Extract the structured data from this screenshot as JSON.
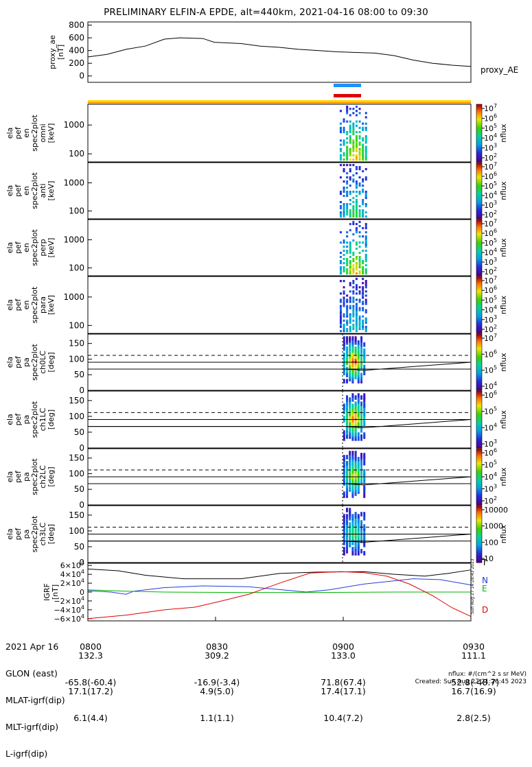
{
  "title": "PRELIMINARY ELFIN-A EPDE, alt=440km, 2021-04-16 08:00 to 09:30",
  "panels": [
    {
      "id": "proxy_ae",
      "ylabel_lines": [
        "proxy_ae",
        "[nT]"
      ],
      "right_label": "proxy_AE",
      "yticks": [
        "800",
        "600",
        "400",
        "200",
        "0"
      ]
    },
    {
      "id": "omni",
      "ylabel_lines": [
        "ela",
        "pef",
        "en",
        "spec2plot",
        "omni",
        "[keV]"
      ],
      "yticks": [
        "1000",
        "100"
      ],
      "cbar_ticks": [
        "10^7",
        "10^6",
        "10^5",
        "10^4",
        "10^3",
        "10^2"
      ],
      "cbar_label": "nflux"
    },
    {
      "id": "anti",
      "ylabel_lines": [
        "ela",
        "pef",
        "en",
        "spec2plot",
        "anti",
        "[keV]"
      ],
      "yticks": [
        "1000",
        "100"
      ],
      "cbar_ticks": [
        "10^7",
        "10^6",
        "10^5",
        "10^4",
        "10^3",
        "10^2"
      ],
      "cbar_label": "nflux"
    },
    {
      "id": "perp",
      "ylabel_lines": [
        "ela",
        "pef",
        "en",
        "spec2plot",
        "perp",
        "[keV]"
      ],
      "yticks": [
        "1000",
        "100"
      ],
      "cbar_ticks": [
        "10^7",
        "10^6",
        "10^5",
        "10^4",
        "10^3",
        "10^2"
      ],
      "cbar_label": "nflux"
    },
    {
      "id": "para",
      "ylabel_lines": [
        "ela",
        "pef",
        "en",
        "spec2plot",
        "para",
        "[keV]"
      ],
      "yticks": [
        "1000",
        "100"
      ],
      "cbar_ticks": [
        "10^7",
        "10^6",
        "10^5",
        "10^4",
        "10^3",
        "10^2"
      ],
      "cbar_label": "nflux"
    },
    {
      "id": "ch0LC",
      "ylabel_lines": [
        "ela",
        "pef",
        "pa",
        "spec2plot",
        "ch0LC",
        "[deg]"
      ],
      "yticks": [
        "150",
        "100",
        "50",
        "0"
      ],
      "cbar_ticks": [
        "10^7",
        "10^6",
        "10^5",
        "10^4"
      ],
      "cbar_label": "nflux"
    },
    {
      "id": "ch1LC",
      "ylabel_lines": [
        "ela",
        "pef",
        "pa",
        "spec2plot",
        "ch1LC",
        "[deg]"
      ],
      "yticks": [
        "150",
        "100",
        "50",
        "0"
      ],
      "cbar_ticks": [
        "10^6",
        "10^5",
        "10^4",
        "10^3"
      ],
      "cbar_label": "nflux"
    },
    {
      "id": "ch2LC",
      "ylabel_lines": [
        "ela",
        "pef",
        "pa",
        "spec2plot",
        "ch2LC",
        "[deg]"
      ],
      "yticks": [
        "150",
        "100",
        "50",
        "0"
      ],
      "cbar_ticks": [
        "10^6",
        "10^5",
        "10^4",
        "10^3",
        "10^2"
      ],
      "cbar_label": "nflux"
    },
    {
      "id": "ch3LC",
      "ylabel_lines": [
        "ela",
        "pef",
        "pa",
        "spec2plot",
        "ch3LC",
        "[deg]"
      ],
      "yticks": [
        "150",
        "100",
        "50",
        "0"
      ],
      "cbar_ticks": [
        "10000",
        "1000",
        "100",
        "10"
      ],
      "cbar_label": "nflux"
    },
    {
      "id": "igrf",
      "ylabel_lines": [
        "IGRF",
        "[nT]"
      ],
      "yticks": [
        "6×10^4",
        "4×10^4",
        "2×10^4",
        "0",
        "−2×10^4",
        "−4×10^4",
        "−6×10^4"
      ],
      "right_labels": [
        "T",
        "N",
        "E",
        "D"
      ]
    }
  ],
  "colors": {
    "T": "#000000",
    "N": "#1f3fd6",
    "E": "#00b000",
    "D": "#e00000",
    "sci_bar": "#ffd400",
    "sci_bar_edge": "#ff7f00",
    "marker_blue": "#1e90ff",
    "marker_red": "#e00000"
  },
  "chart_data": {
    "type": "line",
    "x": [
      "0800",
      "0830",
      "0900",
      "0930"
    ],
    "series": [
      {
        "name": "proxy_AE",
        "points": [
          [
            0,
            300
          ],
          [
            5,
            340
          ],
          [
            10,
            420
          ],
          [
            15,
            470
          ],
          [
            20,
            580
          ],
          [
            24,
            600
          ],
          [
            30,
            590
          ],
          [
            33,
            530
          ],
          [
            40,
            510
          ],
          [
            45,
            470
          ],
          [
            50,
            450
          ],
          [
            55,
            420
          ],
          [
            60,
            400
          ],
          [
            65,
            380
          ],
          [
            70,
            370
          ],
          [
            75,
            360
          ],
          [
            80,
            320
          ],
          [
            85,
            250
          ],
          [
            90,
            200
          ],
          [
            95,
            170
          ],
          [
            100,
            150
          ]
        ]
      },
      {
        "name": "T",
        "points": [
          [
            0,
            52000
          ],
          [
            8,
            48000
          ],
          [
            15,
            38000
          ],
          [
            25,
            30000
          ],
          [
            40,
            30000
          ],
          [
            50,
            42000
          ],
          [
            60,
            45000
          ],
          [
            72,
            46000
          ],
          [
            80,
            40000
          ],
          [
            88,
            36000
          ],
          [
            94,
            42000
          ],
          [
            100,
            50000
          ]
        ]
      },
      {
        "name": "N",
        "points": [
          [
            0,
            3000
          ],
          [
            6,
            0
          ],
          [
            10,
            -5000
          ],
          [
            12,
            2000
          ],
          [
            20,
            10000
          ],
          [
            30,
            14000
          ],
          [
            42,
            12000
          ],
          [
            52,
            4000
          ],
          [
            57,
            0
          ],
          [
            63,
            5000
          ],
          [
            72,
            18000
          ],
          [
            85,
            30000
          ],
          [
            92,
            28000
          ],
          [
            100,
            16000
          ]
        ]
      },
      {
        "name": "E",
        "points": [
          [
            0,
            5000
          ],
          [
            10,
            2000
          ],
          [
            20,
            0
          ],
          [
            40,
            -1000
          ],
          [
            60,
            -1000
          ],
          [
            80,
            0
          ],
          [
            100,
            0
          ]
        ]
      },
      {
        "name": "D",
        "points": [
          [
            0,
            -60000
          ],
          [
            10,
            -52000
          ],
          [
            20,
            -40000
          ],
          [
            28,
            -34000
          ],
          [
            35,
            -20000
          ],
          [
            42,
            -5000
          ],
          [
            50,
            20000
          ],
          [
            58,
            43000
          ],
          [
            66,
            46000
          ],
          [
            72,
            44000
          ],
          [
            78,
            36000
          ],
          [
            84,
            18000
          ],
          [
            90,
            -8000
          ],
          [
            95,
            -35000
          ],
          [
            100,
            -55000
          ]
        ]
      }
    ],
    "xlim": [
      0,
      100
    ],
    "ae_ylim": [
      -100,
      850
    ],
    "igrf_ylim": [
      -65000,
      65000
    ],
    "refs": [
      {
        "y": 112,
        "style": "dashed"
      },
      {
        "y": 90,
        "style": "solid"
      },
      {
        "y": 68,
        "style": "solid"
      }
    ]
  },
  "time_axis": {
    "labels": [
      "0800",
      "0830",
      "0900",
      "0930"
    ]
  },
  "ephemeris": {
    "cols": [
      [
        "2021 Apr 16",
        "GLON (east)",
        "MLAT-igrf(dip)",
        "MLT-igrf(dip)",
        "L-igrf(dip)"
      ],
      [
        "0800",
        "132.3",
        "-65.8(-60.4)",
        "17.1(17.2)",
        "6.1(4.4)"
      ],
      [
        "0830",
        "309.2",
        "-16.9(-3.4)",
        "4.9(5.0)",
        "1.1(1.1)"
      ],
      [
        "0900",
        "133.0",
        "71.8(67.4)",
        "17.4(17.1)",
        "10.4(7.2)"
      ],
      [
        "0930",
        "111.1",
        "-52.8(-48.7)",
        "16.7(16.9)",
        "2.8(2.5)"
      ]
    ]
  },
  "footer": {
    "units": "nflux: #/(cm^2 s sr MeV)",
    "created": "Created: Sun Aug 27 21:26:45 2023",
    "stamp": "Sun Aug 27 14:28:43 2023"
  }
}
